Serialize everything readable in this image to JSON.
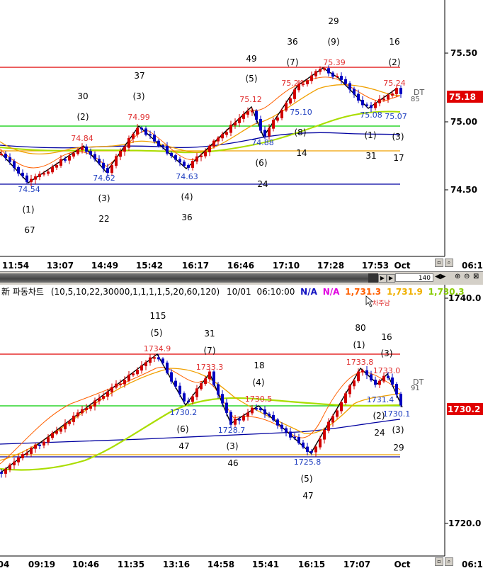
{
  "top_chart": {
    "price_scale": [
      "75.50",
      "75.00",
      "74.50"
    ],
    "last_price": "75.18",
    "time_axis": [
      "11:54",
      "13:07",
      "14:49",
      "15:42",
      "16:17",
      "16:46",
      "17:10",
      "17:28",
      "17:53",
      "Oct"
    ],
    "time_right": "06:10",
    "zoom_value": "140",
    "marker_dt": "DT",
    "marker_85": "85",
    "price_labels": [
      {
        "text": "74.54",
        "color": "blue"
      },
      {
        "text": "74.84",
        "color": "red"
      },
      {
        "text": "74.62",
        "color": "blue"
      },
      {
        "text": "74.99",
        "color": "red"
      },
      {
        "text": "74.63",
        "color": "blue"
      },
      {
        "text": "75.12",
        "color": "red"
      },
      {
        "text": "74.88",
        "color": "blue"
      },
      {
        "text": "75.24",
        "color": "red"
      },
      {
        "text": "75.10",
        "color": "blue"
      },
      {
        "text": "75.39",
        "color": "red"
      },
      {
        "text": "75.08",
        "color": "blue"
      },
      {
        "text": "75.24",
        "color": "red"
      },
      {
        "text": "75.07",
        "color": "blue"
      }
    ],
    "wave_labels": [
      "(1)",
      "67",
      "30",
      "(2)",
      "(3)",
      "22",
      "37",
      "(3)",
      "(4)",
      "36",
      "49",
      "(5)",
      "(6)",
      "24",
      "36",
      "(7)",
      "(8)",
      "14",
      "29",
      "(9)",
      "(1)",
      "31",
      "16",
      "(2)",
      "(3)",
      "17"
    ]
  },
  "bottom_chart": {
    "header": {
      "title": "新 파동차트",
      "params": "(10,5,10,22,30000,1,1,1,1,5,20,60,120)",
      "date": "10/01",
      "time": "06:10:00",
      "v1": "N/A",
      "v2": "N/A",
      "v3": "1,731.3",
      "v4": "1,731.9",
      "v5": "1,730.3"
    },
    "cursor_label": "차주남",
    "price_scale": [
      "1740.0",
      "1720.0"
    ],
    "last_price": "1730.2",
    "time_axis": [
      "04",
      "09:19",
      "10:46",
      "11:35",
      "13:16",
      "14:58",
      "15:41",
      "16:15",
      "17:07",
      "Oct"
    ],
    "time_right": "06:10",
    "marker_dt": "DT",
    "marker_91": "91",
    "price_labels": [
      {
        "text": "1734.9",
        "color": "red"
      },
      {
        "text": "1730.2",
        "color": "blue"
      },
      {
        "text": "1733.3",
        "color": "red"
      },
      {
        "text": "1728.7",
        "color": "blue"
      },
      {
        "text": "1730.5",
        "color": "red"
      },
      {
        "text": "1725.8",
        "color": "blue"
      },
      {
        "text": "1733.8",
        "color": "red"
      },
      {
        "text": "1731.4",
        "color": "blue"
      },
      {
        "text": "1733.0",
        "color": "red"
      },
      {
        "text": "1730.1",
        "color": "blue"
      }
    ],
    "wave_labels": [
      "115",
      "(5)",
      "(6)",
      "47",
      "31",
      "(7)",
      "18",
      "(4)",
      "(3)",
      "46",
      "(5)",
      "47",
      "80",
      "(1)",
      "16",
      "(3)",
      "(2)",
      "24",
      "(3)",
      "29"
    ]
  },
  "colors": {
    "price_label_red": "#e03030",
    "price_label_blue": "#2040c0",
    "resistance": "#e00000",
    "green_line": "#00cc00",
    "orange_line": "#f0a000",
    "blue_line": "#0000a0",
    "last_price_bg": "#e00000"
  }
}
